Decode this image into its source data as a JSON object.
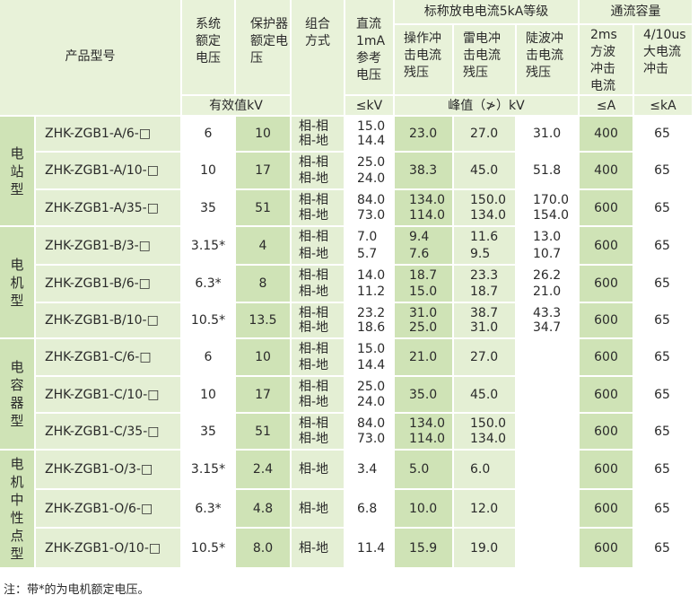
{
  "header": {
    "model": "产品型号",
    "system_voltage": "系统额定电压",
    "protected_voltage": "保护器额定电压",
    "combination": "组合方式",
    "dc_voltage": "直流1mA参考电压",
    "nominal_group": "标称放电电流5kA等级",
    "switching": "操作冲击电流残压",
    "lightning": "雷电冲击电流残压",
    "steep": "陡波冲击电流残压",
    "flow_capacity": "通流容量",
    "square_wave": "2ms方波冲击电流",
    "high_current": "4/10us大电流冲击",
    "unit_rms": "有效值kV",
    "unit_dc": "≤kV",
    "unit_peak": "峰值（≯）kV",
    "unit_a": "≤A",
    "unit_ka": "≤kA"
  },
  "groups": [
    "电站型",
    "电机型",
    "电容器型",
    "电机中性点型"
  ],
  "rows": [
    {
      "model": "ZHK-ZGB1-A/6-□",
      "sys": "6",
      "prot": "10",
      "combo": [
        "相-相",
        "相-地"
      ],
      "dc": [
        "15.0",
        "14.4"
      ],
      "sw": [
        "23.0"
      ],
      "lt": [
        "27.0"
      ],
      "st": [
        "31.0"
      ],
      "sq": "400",
      "hc": "65"
    },
    {
      "model": "ZHK-ZGB1-A/10-□",
      "sys": "10",
      "prot": "17",
      "combo": [
        "相-相",
        "相-地"
      ],
      "dc": [
        "25.0",
        "24.0"
      ],
      "sw": [
        "38.3"
      ],
      "lt": [
        "45.0"
      ],
      "st": [
        "51.8"
      ],
      "sq": "400",
      "hc": "65"
    },
    {
      "model": "ZHK-ZGB1-A/35-□",
      "sys": "35",
      "prot": "51",
      "combo": [
        "相-相",
        "相-地"
      ],
      "dc": [
        "84.0",
        "73.0"
      ],
      "sw": [
        "134.0",
        "114.0"
      ],
      "lt": [
        "150.0",
        "134.0"
      ],
      "st": [
        "170.0",
        "154.0"
      ],
      "sq": "600",
      "hc": "65"
    },
    {
      "model": "ZHK-ZGB1-B/3-□",
      "sys": "3.15*",
      "prot": "4",
      "combo": [
        "相-相",
        "相-地"
      ],
      "dc": [
        "7.0",
        "5.7"
      ],
      "sw": [
        "9.4",
        "7.6"
      ],
      "lt": [
        "11.6",
        "9.5"
      ],
      "st": [
        "13.0",
        "10.7"
      ],
      "sq": "600",
      "hc": "65"
    },
    {
      "model": "ZHK-ZGB1-B/6-□",
      "sys": "6.3*",
      "prot": "8",
      "combo": [
        "相-相",
        "相-地"
      ],
      "dc": [
        "14.0",
        "11.2"
      ],
      "sw": [
        "18.7",
        "15.0"
      ],
      "lt": [
        "23.3",
        "18.7"
      ],
      "st": [
        "26.2",
        "21.0"
      ],
      "sq": "600",
      "hc": "65"
    },
    {
      "model": "ZHK-ZGB1-B/10-□",
      "sys": "10.5*",
      "prot": "13.5",
      "combo": [
        "相-相",
        "相-地"
      ],
      "dc": [
        "23.2",
        "18.6"
      ],
      "sw": [
        "31.0",
        "25.0"
      ],
      "lt": [
        "38.7",
        "31.0"
      ],
      "st": [
        "43.3",
        "34.7"
      ],
      "sq": "600",
      "hc": "65"
    },
    {
      "model": "ZHK-ZGB1-C/6-□",
      "sys": "6",
      "prot": "10",
      "combo": [
        "相-相",
        "相-地"
      ],
      "dc": [
        "15.0",
        "14.4"
      ],
      "sw": [
        "21.0"
      ],
      "lt": [
        "27.0"
      ],
      "st": [
        ""
      ],
      "sq": "600",
      "hc": "65"
    },
    {
      "model": "ZHK-ZGB1-C/10-□",
      "sys": "10",
      "prot": "17",
      "combo": [
        "相-相",
        "相-地"
      ],
      "dc": [
        "25.0",
        "24.0"
      ],
      "sw": [
        "35.0"
      ],
      "lt": [
        "45.0"
      ],
      "st": [
        ""
      ],
      "sq": "600",
      "hc": "65"
    },
    {
      "model": "ZHK-ZGB1-C/35-□",
      "sys": "35",
      "prot": "51",
      "combo": [
        "相-相",
        "相-地"
      ],
      "dc": [
        "84.0",
        "73.0"
      ],
      "sw": [
        "134.0",
        "114.0"
      ],
      "lt": [
        "150.0",
        "134.0"
      ],
      "st": [
        ""
      ],
      "sq": "600",
      "hc": "65"
    },
    {
      "model": "ZHK-ZGB1-O/3-□",
      "sys": "3.15*",
      "prot": "2.4",
      "combo": [
        "相-地"
      ],
      "dc": [
        "3.4"
      ],
      "sw": [
        "5.0"
      ],
      "lt": [
        "6.0"
      ],
      "st": [
        ""
      ],
      "sq": "600",
      "hc": "65"
    },
    {
      "model": "ZHK-ZGB1-O/6-□",
      "sys": "6.3*",
      "prot": "4.8",
      "combo": [
        "相-地"
      ],
      "dc": [
        "6.8"
      ],
      "sw": [
        "10.0"
      ],
      "lt": [
        "12.0"
      ],
      "st": [
        ""
      ],
      "sq": "600",
      "hc": "65"
    },
    {
      "model": "ZHK-ZGB1-O/10-□",
      "sys": "10.5*",
      "prot": "8.0",
      "combo": [
        "相-地"
      ],
      "dc": [
        "11.4"
      ],
      "sw": [
        "15.9"
      ],
      "lt": [
        "19.0"
      ],
      "st": [
        ""
      ],
      "sq": "600",
      "hc": "65"
    }
  ],
  "note": "注：带*的为电机额定电压。"
}
